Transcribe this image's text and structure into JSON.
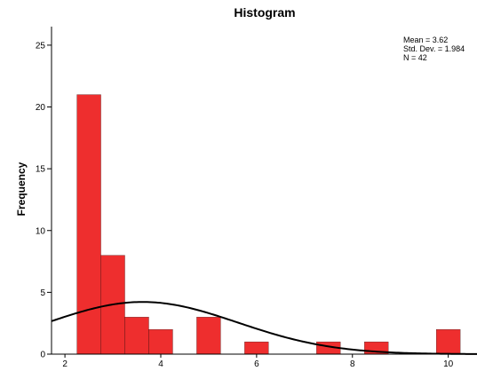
{
  "chart_data": {
    "type": "bar",
    "title": "Histogram",
    "xlabel": "",
    "ylabel": "Frequency",
    "xlim": [
      1.72,
      10.6
    ],
    "ylim": [
      0,
      26.5
    ],
    "x_ticks": [
      2,
      4,
      6,
      8,
      10
    ],
    "y_ticks": [
      0,
      5,
      10,
      15,
      20,
      25
    ],
    "bin_width": 0.5,
    "bins": [
      {
        "start": 2.25,
        "end": 2.75,
        "count": 21
      },
      {
        "start": 2.75,
        "end": 3.25,
        "count": 8
      },
      {
        "start": 3.25,
        "end": 3.75,
        "count": 3
      },
      {
        "start": 3.75,
        "end": 4.25,
        "count": 2
      },
      {
        "start": 4.75,
        "end": 5.25,
        "count": 3
      },
      {
        "start": 5.75,
        "end": 6.25,
        "count": 1
      },
      {
        "start": 7.25,
        "end": 7.75,
        "count": 1
      },
      {
        "start": 8.25,
        "end": 8.75,
        "count": 1
      },
      {
        "start": 9.75,
        "end": 10.25,
        "count": 2
      }
    ],
    "normal_curve": {
      "mean": 3.62,
      "std": 1.984,
      "n": 42
    },
    "stats": {
      "mean_text": "Mean = 3.62",
      "std_text": "Std. Dev. = 1.984",
      "n_text": "N = 42"
    },
    "grid": false,
    "legend": "none",
    "bar_color": "#ee2e2e",
    "curve_color": "#000000"
  }
}
